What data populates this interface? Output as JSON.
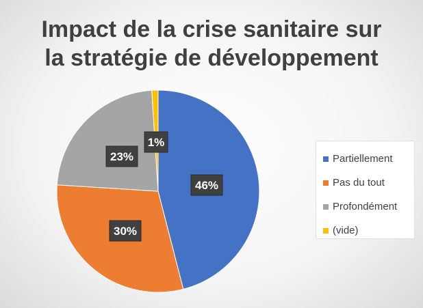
{
  "chart_data": {
    "type": "pie",
    "title_lines": [
      "Impact de la crise sanitaire sur",
      "la stratégie de développement"
    ],
    "categories": [
      "Partiellement",
      "Pas du tout",
      "Profondément",
      "(vide)"
    ],
    "values": [
      46,
      30,
      23,
      1
    ],
    "data_labels": [
      "46%",
      "30%",
      "23%",
      "1%"
    ],
    "colors": [
      "#4472C4",
      "#ED7D31",
      "#A5A5A5",
      "#FFC000"
    ],
    "legend_position": "right"
  }
}
